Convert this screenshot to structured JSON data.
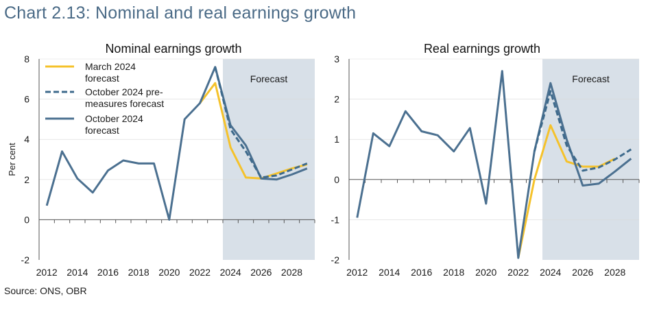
{
  "title": "Chart 2.13: Nominal and real earnings growth",
  "source": "Source: ONS, OBR",
  "colors": {
    "title": "#4a6a86",
    "march": "#f5c22b",
    "october_pre": "#3e6a8c",
    "october": "#4b7090",
    "forecast_shading": "#d8e0e8",
    "gridline": "#d9d9d9"
  },
  "chart_data": [
    {
      "type": "line",
      "title": "Nominal earnings growth",
      "ylabel": "Per cent",
      "xlabel": "",
      "x": [
        2012,
        2013,
        2014,
        2015,
        2016,
        2017,
        2018,
        2019,
        2020,
        2021,
        2022,
        2023,
        2024,
        2025,
        2026,
        2027,
        2028,
        2029
      ],
      "ylim": [
        -2,
        8
      ],
      "yticks": [
        -2,
        0,
        2,
        4,
        6,
        8
      ],
      "ytick_labels": [
        "-2",
        "0",
        "2",
        "4",
        "6",
        "8"
      ],
      "xticks": [
        2012,
        2014,
        2016,
        2018,
        2020,
        2022,
        2024,
        2026,
        2028
      ],
      "xtick_labels": [
        "2012",
        "2014",
        "2016",
        "2018",
        "2020",
        "2022",
        "2024",
        "2026",
        "2028"
      ],
      "forecast_start": 2023.5,
      "forecast_label": "Forecast",
      "legend": "top-left",
      "grid": true,
      "series": [
        {
          "name": "March 2024 forecast",
          "color": "#f5c22b",
          "style": "solid",
          "x": [
            2022,
            2023,
            2024,
            2025,
            2026,
            2027,
            2028,
            2029
          ],
          "values": [
            5.8,
            6.8,
            3.6,
            2.1,
            2.05,
            2.3,
            2.55,
            2.75
          ]
        },
        {
          "name": "October 2024 pre-measures forecast",
          "color": "#3e6a8c",
          "style": "dashed",
          "x": [
            2023,
            2024,
            2025,
            2026,
            2027,
            2028,
            2029
          ],
          "values": [
            7.6,
            4.5,
            3.4,
            2.1,
            2.2,
            2.5,
            2.8
          ]
        },
        {
          "name": "October 2024 forecast",
          "color": "#4b7090",
          "style": "solid",
          "x": [
            2012,
            2013,
            2014,
            2015,
            2016,
            2017,
            2018,
            2019,
            2020,
            2021,
            2022,
            2023,
            2024,
            2025,
            2026,
            2027,
            2028,
            2029
          ],
          "values": [
            0.7,
            3.4,
            2.05,
            1.35,
            2.45,
            2.95,
            2.8,
            2.8,
            0.0,
            5.0,
            5.8,
            7.6,
            4.7,
            3.7,
            2.05,
            2.0,
            2.25,
            2.55
          ]
        }
      ]
    },
    {
      "type": "line",
      "title": "Real earnings growth",
      "ylabel": "",
      "xlabel": "",
      "x": [
        2012,
        2013,
        2014,
        2015,
        2016,
        2017,
        2018,
        2019,
        2020,
        2021,
        2022,
        2023,
        2024,
        2025,
        2026,
        2027,
        2028,
        2029
      ],
      "ylim": [
        -2,
        3
      ],
      "yticks": [
        -2,
        -1,
        0,
        1,
        2,
        3
      ],
      "ytick_labels": [
        "-2",
        "-1",
        "0",
        "1",
        "2",
        "3"
      ],
      "xticks": [
        2012,
        2014,
        2016,
        2018,
        2020,
        2022,
        2024,
        2026,
        2028
      ],
      "xtick_labels": [
        "2012",
        "2014",
        "2016",
        "2018",
        "2020",
        "2022",
        "2024",
        "2026",
        "2028"
      ],
      "forecast_start": 2023.5,
      "forecast_label": "Forecast",
      "legend": "none",
      "grid": true,
      "series": [
        {
          "name": "March 2024 forecast",
          "color": "#f5c22b",
          "style": "solid",
          "x": [
            2022,
            2023,
            2024,
            2025,
            2026,
            2027,
            2028
          ],
          "values": [
            -1.95,
            0.0,
            1.35,
            0.45,
            0.32,
            0.32,
            0.52
          ]
        },
        {
          "name": "October 2024 pre-measures forecast",
          "color": "#3e6a8c",
          "style": "dashed",
          "x": [
            2023,
            2024,
            2025,
            2026,
            2027,
            2028,
            2029
          ],
          "values": [
            0.7,
            2.2,
            0.85,
            0.22,
            0.3,
            0.5,
            0.75
          ]
        },
        {
          "name": "October 2024 forecast",
          "color": "#4b7090",
          "style": "solid",
          "x": [
            2012,
            2013,
            2014,
            2015,
            2016,
            2017,
            2018,
            2019,
            2020,
            2021,
            2022,
            2023,
            2024,
            2025,
            2026,
            2027,
            2028,
            2029
          ],
          "values": [
            -0.95,
            1.15,
            0.83,
            1.7,
            1.2,
            1.1,
            0.7,
            1.28,
            -0.6,
            2.7,
            -1.95,
            0.7,
            2.4,
            1.0,
            -0.15,
            -0.1,
            0.2,
            0.52
          ]
        }
      ]
    }
  ]
}
